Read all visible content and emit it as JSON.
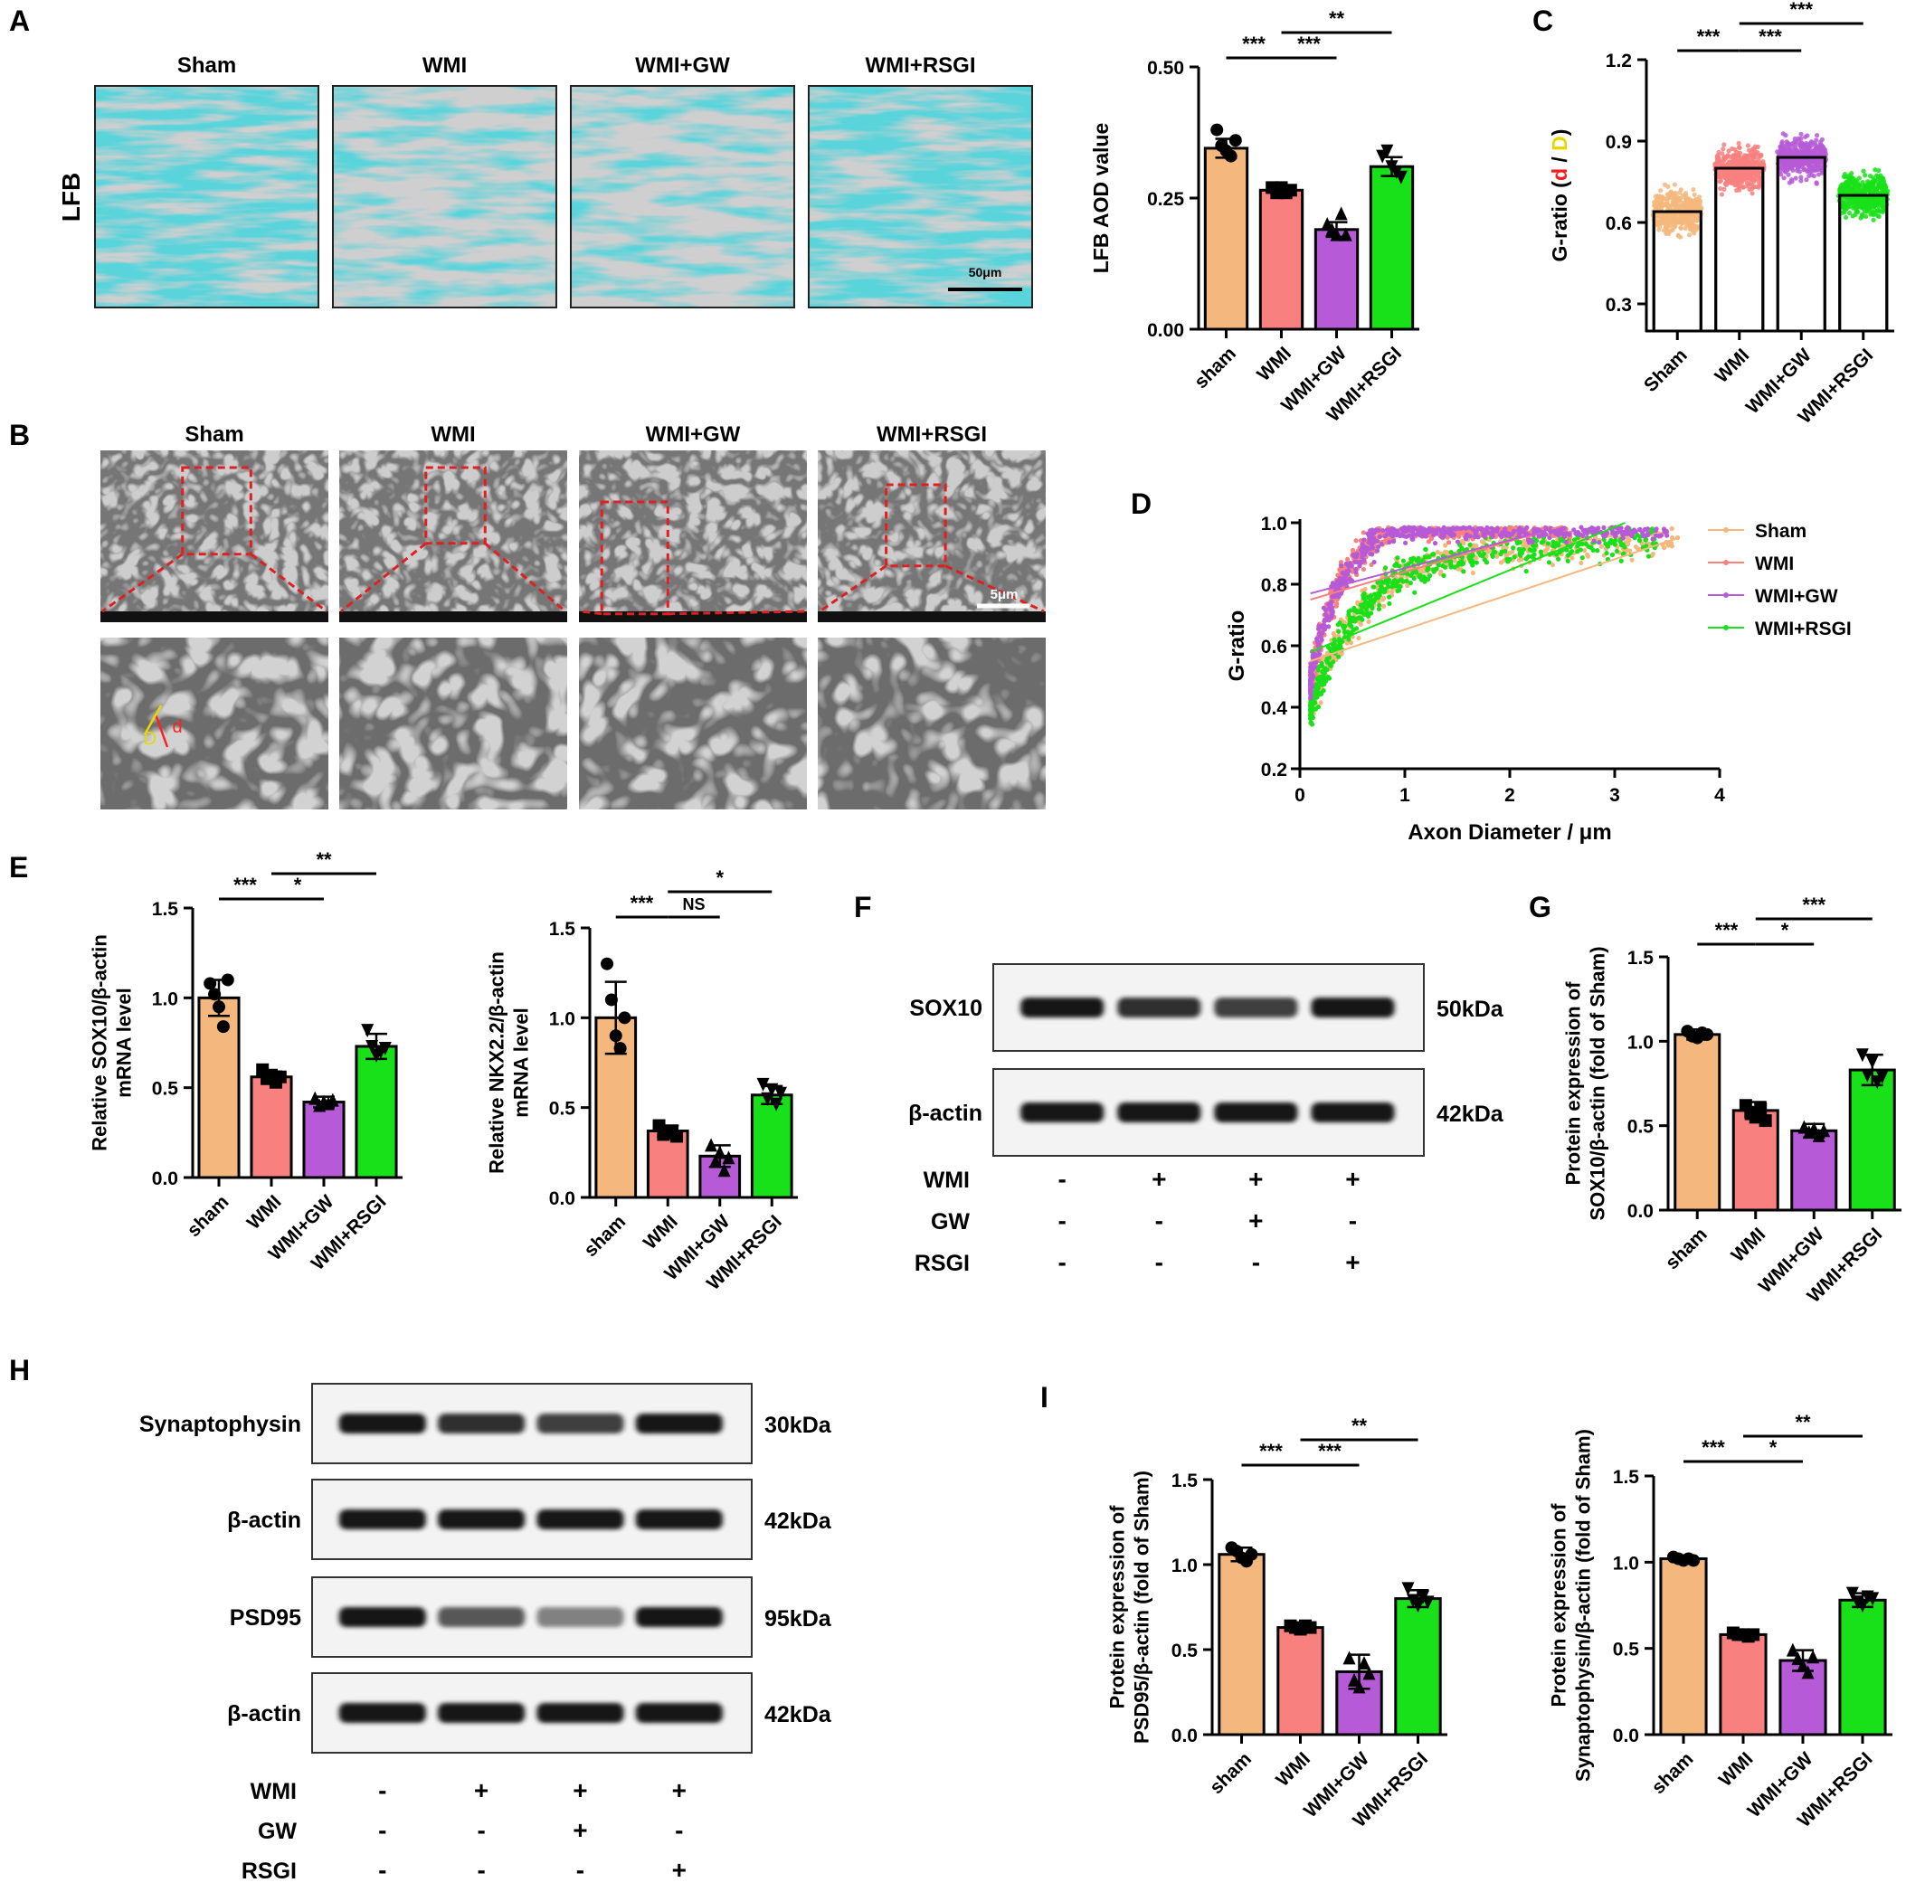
{
  "colors": {
    "sham": "#f4b77d",
    "wmi": "#f8807f",
    "wmigw": "#b65ad7",
    "wmirsgi": "#19e119",
    "lfb_stain": "#19a7b4",
    "sig_line": "#000000",
    "tem_box": "#e02020"
  },
  "panel_letters": [
    "A",
    "B",
    "C",
    "D",
    "E",
    "F",
    "G",
    "H",
    "I"
  ],
  "micrographs": {
    "lfb": {
      "side_label": "LFB",
      "titles": [
        "Sham",
        "WMI",
        "WMI+GW",
        "WMI+RSGI"
      ],
      "scale_bar": "50μm"
    },
    "tem": {
      "titles": [
        "Sham",
        "WMI",
        "WMI+GW",
        "WMI+RSGI"
      ],
      "scale_bar": "5μm",
      "measure_labels": [
        "D",
        "d"
      ]
    }
  },
  "blots": {
    "F": {
      "rows": [
        {
          "label": "SOX10",
          "kda": "50kDa",
          "intensity": [
            1.0,
            0.85,
            0.75,
            1.0
          ]
        },
        {
          "label": "β-actin",
          "kda": "42kDa",
          "intensity": [
            1.0,
            1.0,
            1.0,
            1.0
          ]
        }
      ],
      "conditions": [
        {
          "label": "WMI",
          "marks": [
            "-",
            "+",
            "+",
            "+"
          ]
        },
        {
          "label": "GW",
          "marks": [
            "-",
            "-",
            "+",
            "-"
          ]
        },
        {
          "label": "RSGI",
          "marks": [
            "-",
            "-",
            "-",
            "+"
          ]
        }
      ]
    },
    "H": {
      "rows": [
        {
          "label": "Synaptophysin",
          "kda": "30kDa",
          "intensity": [
            1.0,
            0.85,
            0.75,
            1.0
          ]
        },
        {
          "label": "β-actin",
          "kda": "42kDa",
          "intensity": [
            1.0,
            1.0,
            1.0,
            1.0
          ]
        },
        {
          "label": "PSD95",
          "kda": "95kDa",
          "intensity": [
            1.0,
            0.6,
            0.35,
            1.0
          ]
        },
        {
          "label": "β-actin",
          "kda": "42kDa",
          "intensity": [
            1.0,
            1.0,
            1.0,
            1.0
          ]
        }
      ],
      "conditions": [
        {
          "label": "WMI",
          "marks": [
            "-",
            "+",
            "+",
            "+"
          ]
        },
        {
          "label": "GW",
          "marks": [
            "-",
            "-",
            "+",
            "-"
          ]
        },
        {
          "label": "RSGI",
          "marks": [
            "-",
            "-",
            "-",
            "+"
          ]
        }
      ]
    }
  },
  "chart_data": [
    {
      "id": "lfb",
      "type": "bar",
      "categories": [
        "sham",
        "WMI",
        "WMI+GW",
        "WMI+RSGI"
      ],
      "values": [
        0.345,
        0.265,
        0.19,
        0.31
      ],
      "errors": [
        0.018,
        0.008,
        0.014,
        0.018
      ],
      "points": [
        [
          0.38,
          0.35,
          0.34,
          0.33,
          0.36
        ],
        [
          0.27,
          0.26,
          0.27,
          0.26,
          0.265
        ],
        [
          0.2,
          0.19,
          0.18,
          0.22,
          0.18
        ],
        [
          0.33,
          0.34,
          0.31,
          0.3,
          0.29
        ]
      ],
      "ylabel": "LFB AOD value",
      "ylim": [
        0,
        0.5
      ],
      "yticks": [
        "0.00",
        "0.25",
        "0.50"
      ],
      "significance": [
        {
          "from": 0,
          "to": 1,
          "level": 0,
          "label": "***"
        },
        {
          "from": 1,
          "to": 2,
          "level": 0,
          "label": "***"
        },
        {
          "from": 1,
          "to": 3,
          "level": 1,
          "label": "**"
        }
      ]
    },
    {
      "id": "gratio_bar",
      "type": "bar",
      "categories": [
        "Sham",
        "WMI",
        "WMI+GW",
        "WMI+RSGI"
      ],
      "values": [
        0.64,
        0.8,
        0.84,
        0.7
      ],
      "scatter_spread": [
        [
          0.25,
          1.0
        ],
        [
          0.4,
          1.03
        ],
        [
          0.35,
          1.01
        ],
        [
          0.3,
          1.0
        ]
      ],
      "ylabel": "G-ratio",
      "ylabel_parts": [
        "G-ratio (",
        "d",
        " / ",
        "D",
        ")"
      ],
      "ylim": [
        0.2,
        1.2
      ],
      "yticks": [
        "0.3",
        "0.6",
        "0.9",
        "1.2"
      ],
      "significance": [
        {
          "from": 0,
          "to": 1,
          "level": 0,
          "label": "***"
        },
        {
          "from": 1,
          "to": 2,
          "level": 0,
          "label": "***"
        },
        {
          "from": 1,
          "to": 3,
          "level": 1,
          "label": "***"
        }
      ]
    },
    {
      "id": "gratio_scatter",
      "type": "scatter",
      "xlabel": "Axon Diameter / μm",
      "ylabel": "G-ratio",
      "xlim": [
        0,
        4
      ],
      "ylim": [
        0.2,
        1.0
      ],
      "xticks": [
        "0",
        "1",
        "2",
        "3",
        "4"
      ],
      "yticks": [
        "0.2",
        "0.4",
        "0.6",
        "0.8",
        "1.0"
      ],
      "legend_position": "right",
      "series": [
        {
          "name": "Sham",
          "fit": [
            [
              0.1,
              0.55
            ],
            [
              3.6,
              0.95
            ]
          ],
          "x_range": [
            0.1,
            3.6
          ],
          "y_center": 0.62
        },
        {
          "name": "WMI",
          "fit": [
            [
              0.1,
              0.75
            ],
            [
              2.5,
              0.99
            ]
          ],
          "x_range": [
            0.1,
            2.6
          ],
          "y_center": 0.82
        },
        {
          "name": "WMI+GW",
          "fit": [
            [
              0.1,
              0.77
            ],
            [
              2.4,
              0.98
            ]
          ],
          "x_range": [
            0.1,
            3.5
          ],
          "y_center": 0.85
        },
        {
          "name": "WMI+RSGI",
          "fit": [
            [
              0.1,
              0.58
            ],
            [
              3.1,
              1.0
            ]
          ],
          "x_range": [
            0.1,
            3.4
          ],
          "y_center": 0.7
        }
      ]
    },
    {
      "id": "sox10_mrna",
      "type": "bar",
      "categories": [
        "sham",
        "WMI",
        "WMI+GW",
        "WMI+RSGI"
      ],
      "values": [
        1.0,
        0.56,
        0.42,
        0.73
      ],
      "errors": [
        0.1,
        0.03,
        0.03,
        0.07
      ],
      "points": [
        [
          1.08,
          1.02,
          0.95,
          0.84,
          1.1
        ],
        [
          0.6,
          0.55,
          0.57,
          0.53,
          0.56
        ],
        [
          0.44,
          0.4,
          0.42,
          0.41,
          0.43
        ],
        [
          0.82,
          0.73,
          0.68,
          0.7,
          0.72
        ]
      ],
      "ylabel": "Relative SOX10/β-actin mRNA level",
      "ylim": [
        0,
        1.5
      ],
      "yticks": [
        "0.0",
        "0.5",
        "1.0",
        "1.5"
      ],
      "significance": [
        {
          "from": 0,
          "to": 1,
          "level": 0,
          "label": "***"
        },
        {
          "from": 1,
          "to": 2,
          "level": 0,
          "label": "*"
        },
        {
          "from": 1,
          "to": 3,
          "level": 1,
          "label": "**"
        }
      ]
    },
    {
      "id": "nkx22_mrna",
      "type": "bar",
      "categories": [
        "sham",
        "WMI",
        "WMI+GW",
        "WMI+RSGI"
      ],
      "values": [
        1.0,
        0.37,
        0.23,
        0.57
      ],
      "errors": [
        0.2,
        0.03,
        0.06,
        0.05
      ],
      "points": [
        [
          1.3,
          1.1,
          0.9,
          0.83,
          1.0
        ],
        [
          0.4,
          0.35,
          0.36,
          0.37,
          0.34
        ],
        [
          0.29,
          0.2,
          0.25,
          0.15,
          0.22
        ],
        [
          0.63,
          0.55,
          0.6,
          0.52,
          0.58
        ]
      ],
      "ylabel": "Relative NKX2.2/β-actin mRNA level",
      "ylim": [
        0,
        1.5
      ],
      "yticks": [
        "0.0",
        "0.5",
        "1.0",
        "1.5"
      ],
      "significance": [
        {
          "from": 0,
          "to": 1,
          "level": 0,
          "label": "***"
        },
        {
          "from": 1,
          "to": 2,
          "level": 0,
          "label": "NS"
        },
        {
          "from": 1,
          "to": 3,
          "level": 1,
          "label": "*"
        }
      ]
    },
    {
      "id": "sox10_protein",
      "type": "bar",
      "categories": [
        "sham",
        "WMI",
        "WMI+GW",
        "WMI+RSGI"
      ],
      "values": [
        1.04,
        0.59,
        0.47,
        0.83
      ],
      "errors": [
        0.03,
        0.05,
        0.04,
        0.09
      ],
      "points": [
        [
          1.06,
          1.03,
          1.02,
          1.05,
          1.04
        ],
        [
          0.62,
          0.58,
          0.55,
          0.6,
          0.53
        ],
        [
          0.49,
          0.46,
          0.48,
          0.44,
          0.47
        ],
        [
          0.92,
          0.8,
          0.88,
          0.76,
          0.79
        ]
      ],
      "ylabel": "Protein expression of SOX10/β-actin (fold of Sham)",
      "ylim": [
        0,
        1.5
      ],
      "yticks": [
        "0.0",
        "0.5",
        "1.0",
        "1.5"
      ],
      "significance": [
        {
          "from": 0,
          "to": 1,
          "level": 0,
          "label": "***"
        },
        {
          "from": 1,
          "to": 2,
          "level": 0,
          "label": "*"
        },
        {
          "from": 1,
          "to": 3,
          "level": 1,
          "label": "***"
        }
      ]
    },
    {
      "id": "psd95_protein",
      "type": "bar",
      "categories": [
        "sham",
        "WMI",
        "WMI+GW",
        "WMI+RSGI"
      ],
      "values": [
        1.06,
        0.63,
        0.37,
        0.8
      ],
      "errors": [
        0.04,
        0.01,
        0.1,
        0.05
      ],
      "points": [
        [
          1.1,
          1.08,
          1.04,
          1.02,
          1.06
        ],
        [
          0.64,
          0.63,
          0.62,
          0.64,
          0.63
        ],
        [
          0.45,
          0.32,
          0.28,
          0.42,
          0.36
        ],
        [
          0.86,
          0.79,
          0.76,
          0.81,
          0.78
        ]
      ],
      "ylabel": "Protein expression of PSD95/β-actin (fold of Sham)",
      "ylim": [
        0,
        1.5
      ],
      "yticks": [
        "0.0",
        "0.5",
        "1.0",
        "1.5"
      ],
      "significance": [
        {
          "from": 0,
          "to": 1,
          "level": 0,
          "label": "***"
        },
        {
          "from": 1,
          "to": 2,
          "level": 0,
          "label": "***"
        },
        {
          "from": 1,
          "to": 3,
          "level": 1,
          "label": "**"
        }
      ]
    },
    {
      "id": "synaptophysin_protein",
      "type": "bar",
      "categories": [
        "sham",
        "WMI",
        "WMI+GW",
        "WMI+RSGI"
      ],
      "values": [
        1.02,
        0.58,
        0.43,
        0.78
      ],
      "errors": [
        0.01,
        0.01,
        0.06,
        0.04
      ],
      "points": [
        [
          1.03,
          1.02,
          1.01,
          1.02,
          1.01
        ],
        [
          0.59,
          0.58,
          0.58,
          0.57,
          0.58
        ],
        [
          0.49,
          0.44,
          0.4,
          0.36,
          0.45
        ],
        [
          0.82,
          0.77,
          0.75,
          0.8,
          0.79
        ]
      ],
      "ylabel": "Protein expression of Synaptophysin/β-actin (fold of Sham)",
      "ylim": [
        0,
        1.5
      ],
      "yticks": [
        "0.0",
        "0.5",
        "1.0",
        "1.5"
      ],
      "significance": [
        {
          "from": 0,
          "to": 1,
          "level": 0,
          "label": "***"
        },
        {
          "from": 1,
          "to": 2,
          "level": 0,
          "label": "*"
        },
        {
          "from": 1,
          "to": 3,
          "level": 1,
          "label": "**"
        }
      ]
    }
  ]
}
